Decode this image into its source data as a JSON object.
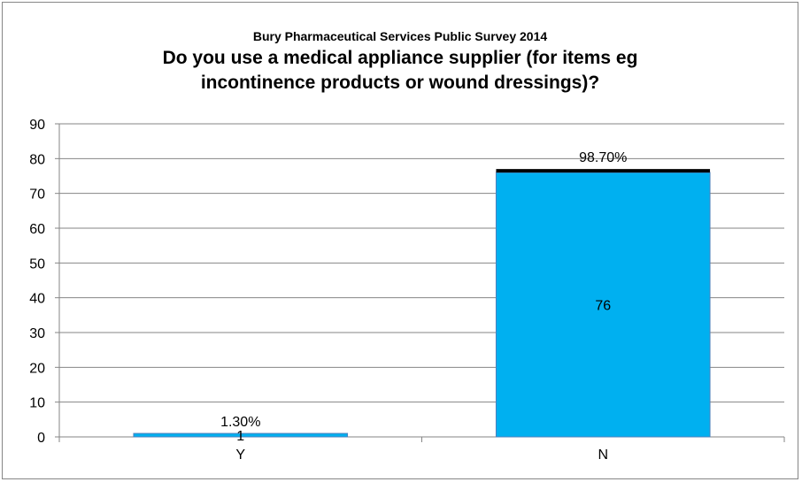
{
  "chart_data": {
    "type": "bar",
    "supertitle": "Bury Pharmaceutical Services Public Survey 2014",
    "title_lines": [
      "Do you use a medical appliance supplier (for items eg",
      "incontinence products or wound dressings)?"
    ],
    "categories": [
      "Y",
      "N"
    ],
    "values": [
      1,
      76
    ],
    "percent_labels": [
      "1.30%",
      "98.70%"
    ],
    "percent_marker_values": [
      1,
      77
    ],
    "ylim": [
      0,
      90
    ],
    "yticks": [
      0,
      10,
      20,
      30,
      40,
      50,
      60,
      70,
      80,
      90
    ],
    "grid": true,
    "legend": "none",
    "colors": {
      "bar": "#00B0F0",
      "bar_stroke": "#4F81BD",
      "marker": "#000000",
      "grid": "#868686"
    }
  }
}
